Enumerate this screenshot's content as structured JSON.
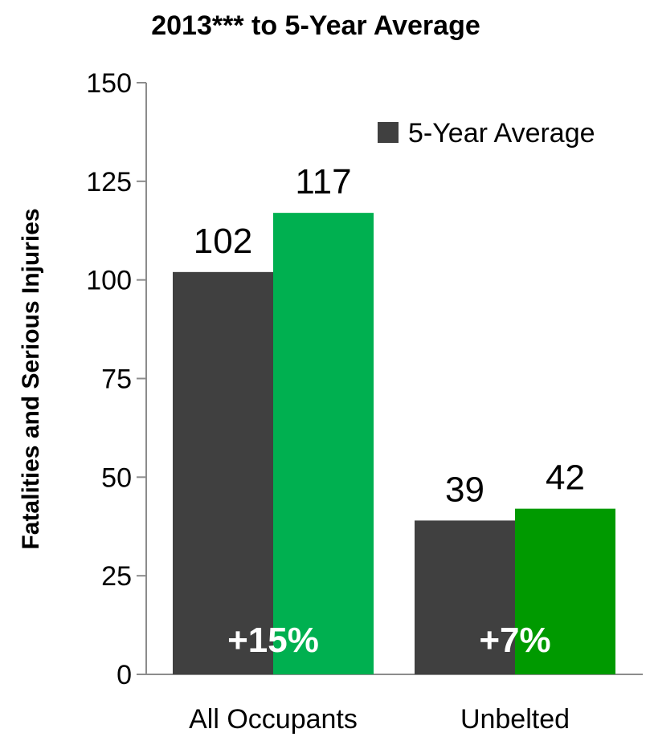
{
  "chart_data": {
    "type": "bar",
    "title": "2013*** to 5-Year Average",
    "ylabel": "Fatalities and Serious Injuries",
    "xlabel": "",
    "ylim": [
      0,
      150
    ],
    "yticks": [
      "0",
      "25",
      "50",
      "75",
      "100",
      "125",
      "150"
    ],
    "categories": [
      "All Occupants",
      "Unbelted"
    ],
    "series": [
      {
        "name": "5-Year Average",
        "values": [
          102,
          39
        ],
        "color": "#404040"
      },
      {
        "values": [
          117,
          42
        ],
        "colors": [
          "#00b050",
          "#009a00"
        ]
      }
    ],
    "data_labels": [
      [
        "102",
        "39"
      ],
      [
        "117",
        "42"
      ]
    ],
    "change_labels": [
      "+15%",
      "+7%"
    ],
    "legend": {
      "position": "top-right",
      "entries": [
        "5-Year Average"
      ]
    },
    "grid": false
  }
}
